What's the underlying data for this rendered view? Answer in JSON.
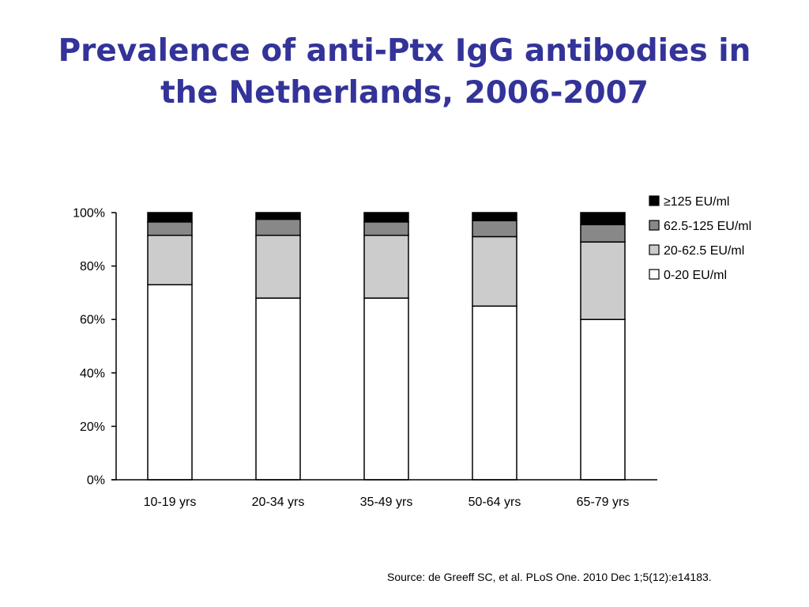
{
  "slide": {
    "title_line1": "Prevalence of anti-Ptx IgG antibodies in",
    "title_line2": "the Netherlands, 2006-2007",
    "source": "Source: de Greeff SC, et al. PLoS One. 2010 Dec 1;5(12):e14183."
  },
  "chart_data": {
    "type": "bar",
    "stacked": true,
    "categories": [
      "10-19 yrs",
      "20-34 yrs",
      "35-49 yrs",
      "50-64 yrs",
      "65-79 yrs"
    ],
    "ylim": [
      0,
      100
    ],
    "yticks": [
      0,
      20,
      40,
      60,
      80,
      100
    ],
    "ytick_labels": [
      "0%",
      "20%",
      "40%",
      "60%",
      "80%",
      "100%"
    ],
    "xlabel": "",
    "ylabel": "",
    "title": "",
    "grid": false,
    "legend_position": "top-right",
    "series": [
      {
        "name": "0-20 EU/ml",
        "color": "#ffffff",
        "values": [
          73,
          68,
          68,
          65,
          60
        ]
      },
      {
        "name": "20-62.5 EU/ml",
        "color": "#cccccc",
        "values": [
          18.5,
          23.5,
          23.5,
          26,
          29
        ]
      },
      {
        "name": "62.5-125 EU/ml",
        "color": "#888888",
        "values": [
          5,
          6,
          5,
          6,
          6.5
        ]
      },
      {
        "name": "≥125 EU/ml",
        "color": "#000000",
        "values": [
          3.5,
          2.5,
          3.5,
          3,
          4.5
        ]
      }
    ]
  }
}
